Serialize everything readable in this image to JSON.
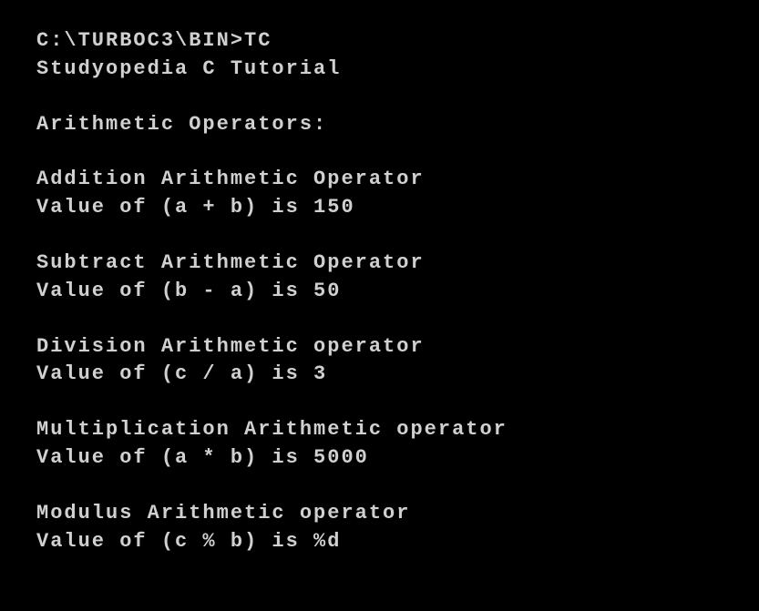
{
  "terminal": {
    "background_color": "#000000",
    "text_color": "#d0d0d0",
    "font_family": "Courier New, monospace",
    "font_size": 22,
    "lines": {
      "prompt": "C:\\TURBOC3\\BIN>TC",
      "title": "Studyopedia C Tutorial",
      "section_header": "Arithmetic Operators:",
      "addition_label": "Addition Arithmetic Operator",
      "addition_value": "Value of (a + b) is 150",
      "subtract_label": "Subtract Arithmetic Operator",
      "subtract_value": "Value of (b - a) is 50",
      "division_label": "Division Arithmetic operator",
      "division_value": "Value of (c / a) is 3",
      "multiplication_label": "Multiplication Arithmetic operator",
      "multiplication_value": "Value of (a * b) is 5000",
      "modulus_label": "Modulus Arithmetic operator",
      "modulus_value": "Value of (c % b) is %d"
    }
  }
}
